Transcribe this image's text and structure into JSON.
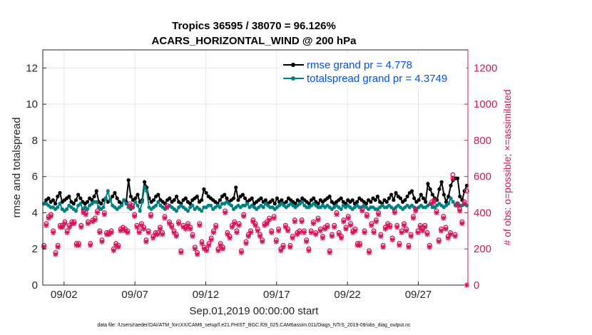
{
  "chart_data": {
    "type": "line",
    "title": "Tropics 36595 / 38070 = 96.126%",
    "subtitle": "ACARS_HORIZONTAL_WIND @ 200 hPa",
    "xlabel": "Sep.01,2019 00:00:00 start",
    "ylabel": "rmse and totalspread",
    "ylabel_right": "# of obs: o=possible; ×=assimilated",
    "xlim": [
      0.5,
      30.5
    ],
    "ylim": [
      0,
      13
    ],
    "ylim_right": [
      0,
      1300
    ],
    "x_ticks": [
      {
        "x": 2,
        "label": "09/02"
      },
      {
        "x": 7,
        "label": "09/07"
      },
      {
        "x": 12,
        "label": "09/12"
      },
      {
        "x": 17,
        "label": "09/17"
      },
      {
        "x": 22,
        "label": "09/22"
      },
      {
        "x": 27,
        "label": "09/27"
      }
    ],
    "y_ticks": [
      0,
      2,
      4,
      6,
      8,
      10,
      12
    ],
    "y_ticks_right": [
      0,
      200,
      400,
      600,
      800,
      1000,
      1200
    ],
    "grid": true,
    "legend_position": "top-right",
    "colors": {
      "rmse": "#000000",
      "spread": "#008080",
      "obs": "#d4145a",
      "axis": "#262626",
      "legend_text": "#0050e6"
    },
    "series": [
      {
        "name": "rmse grand pr = 4.778",
        "color": "#000000",
        "values": [
          4.5,
          4.7,
          4.8,
          4.6,
          4.7,
          4.5,
          4.9,
          5.1,
          4.6,
          4.7,
          4.8,
          4.9,
          4.6,
          4.5,
          4.7,
          5.0,
          4.8,
          4.6,
          4.5,
          4.6,
          4.8,
          4.7,
          4.9,
          5.2,
          4.6,
          4.5,
          4.7,
          4.8,
          4.6,
          4.7,
          4.9,
          5.1,
          4.8,
          4.6,
          4.5,
          4.7,
          4.6,
          5.8,
          4.9,
          4.7,
          4.8,
          5.0,
          4.6,
          4.7,
          5.7,
          5.4,
          4.8,
          4.6,
          4.7,
          4.9,
          5.0,
          4.7,
          4.6,
          4.5,
          4.7,
          4.8,
          4.6,
          4.7,
          4.9,
          4.6,
          4.5,
          4.7,
          4.8,
          4.6,
          4.5,
          4.7,
          4.8,
          4.9,
          4.6,
          4.7,
          5.3,
          5.1,
          4.9,
          4.8,
          4.7,
          4.6,
          4.5,
          4.7,
          4.9,
          5.0,
          4.8,
          4.6,
          4.7,
          4.8,
          5.4,
          4.7,
          4.9,
          5.0,
          4.8,
          4.6,
          4.7,
          4.8,
          4.5,
          4.6,
          4.7,
          4.8,
          4.6,
          4.7,
          4.5,
          4.6,
          4.7,
          4.5,
          4.8,
          4.6,
          4.7,
          4.5,
          4.6,
          4.8,
          4.7,
          4.6,
          4.5,
          4.7,
          4.6,
          4.8,
          4.7,
          4.6,
          4.5,
          4.7,
          4.8,
          4.6,
          4.5,
          4.7,
          4.6,
          4.7,
          4.8,
          4.9,
          4.6,
          4.5,
          4.6,
          4.7,
          4.8,
          4.6,
          4.5,
          4.7,
          4.6,
          4.7,
          4.5,
          4.6,
          4.8,
          4.7,
          4.6,
          4.5,
          4.7,
          4.6,
          4.8,
          4.7,
          4.9,
          4.6,
          4.5,
          4.7,
          4.6,
          4.8,
          5.0,
          4.7,
          5.1,
          4.9,
          4.8,
          4.6,
          4.7,
          4.9,
          5.1,
          5.2,
          4.8,
          4.6,
          4.7,
          5.0,
          4.8,
          4.6,
          5.6,
          5.3,
          5.0,
          4.8,
          4.7,
          5.3,
          5.7,
          5.0,
          4.6,
          4.9,
          5.5,
          5.8,
          5.9,
          5.9,
          4.9,
          4.7,
          5.2,
          5.5
        ]
      },
      {
        "name": "totalspread grand pr = 4.3749",
        "color": "#008080",
        "values": [
          4.5,
          4.5,
          4.4,
          4.3,
          4.3,
          4.2,
          4.3,
          4.5,
          4.2,
          4.1,
          4.2,
          4.4,
          4.3,
          4.2,
          4.1,
          4.4,
          4.5,
          4.2,
          4.3,
          4.2,
          4.4,
          4.5,
          4.6,
          4.6,
          4.3,
          4.2,
          4.3,
          4.8,
          5.2,
          4.7,
          4.4,
          4.3,
          4.2,
          4.3,
          4.4,
          4.7,
          4.5,
          4.3,
          4.2,
          4.3,
          4.6,
          4.4,
          4.1,
          4.6,
          5.4,
          5.2,
          4.3,
          4.2,
          4.3,
          4.4,
          4.6,
          4.4,
          4.3,
          4.2,
          4.3,
          4.4,
          4.3,
          4.2,
          4.1,
          4.3,
          4.4,
          4.3,
          4.2,
          4.1,
          4.3,
          4.4,
          4.2,
          4.3,
          4.2,
          4.1,
          4.3,
          4.3,
          4.4,
          4.4,
          4.2,
          4.3,
          4.4,
          4.3,
          4.5,
          4.5,
          4.6,
          4.5,
          4.4,
          4.2,
          4.3,
          4.4,
          4.3,
          4.4,
          4.4,
          4.5,
          4.3,
          4.4,
          4.3,
          4.2,
          4.3,
          4.4,
          4.3,
          4.5,
          4.4,
          4.3,
          4.3,
          4.2,
          4.3,
          4.4,
          4.5,
          4.4,
          4.3,
          4.4,
          4.5,
          4.4,
          4.3,
          4.4,
          4.5,
          4.6,
          4.4,
          4.3,
          4.3,
          4.4,
          4.5,
          4.4,
          4.3,
          4.3,
          4.4,
          4.3,
          4.4,
          4.3,
          4.2,
          4.3,
          4.4,
          4.3,
          4.2,
          4.4,
          4.3,
          4.4,
          4.3,
          4.2,
          4.3,
          4.4,
          4.3,
          4.3,
          4.4,
          4.3,
          4.2,
          4.3,
          4.3,
          4.2,
          4.2,
          4.3,
          4.4,
          4.3,
          4.3,
          4.4,
          4.3,
          4.2,
          4.3,
          4.4,
          4.3,
          4.2,
          4.3,
          4.4,
          4.3,
          4.4,
          4.3,
          4.2,
          4.3,
          4.4,
          4.3,
          4.3,
          4.4,
          4.5,
          4.3,
          4.3,
          4.4,
          4.5,
          4.4,
          4.3,
          4.4,
          4.5,
          4.8,
          4.6,
          4.4,
          4.5,
          4.4,
          4.4,
          4.5,
          4.4
        ]
      },
      {
        "name": "obs possible",
        "color": "#d4145a",
        "marker": "o",
        "values": [
          220,
          340,
          380,
          390,
          300,
          180,
          220,
          330,
          330,
          350,
          300,
          330,
          350,
          350,
          230,
          230,
          330,
          410,
          400,
          350,
          230,
          360,
          370,
          410,
          300,
          250,
          400,
          290,
          290,
          300,
          200,
          230,
          220,
          310,
          320,
          310,
          300,
          450,
          440,
          390,
          330,
          300,
          340,
          320,
          250,
          300,
          390,
          270,
          290,
          290,
          320,
          290,
          380,
          440,
          350,
          330,
          300,
          280,
          350,
          190,
          330,
          320,
          340,
          320,
          280,
          210,
          180,
          340,
          240,
          210,
          200,
          230,
          260,
          300,
          330,
          200,
          230,
          210,
          410,
          290,
          270,
          330,
          350,
          300,
          340,
          190,
          390,
          240,
          280,
          300,
          360,
          340,
          310,
          280,
          250,
          340,
          350,
          370,
          300,
          380,
          250,
          310,
          200,
          220,
          330,
          310,
          220,
          270,
          360,
          290,
          300,
          360,
          300,
          250,
          200,
          300,
          350,
          290,
          370,
          310,
          270,
          320,
          330,
          190,
          280,
          330,
          400,
          290,
          270,
          360,
          320,
          380,
          340,
          300,
          310,
          230,
          230,
          420,
          300,
          390,
          190,
          340,
          300,
          360,
          400,
          280,
          220,
          320,
          340,
          330,
          260,
          410,
          330,
          230,
          300,
          340,
          310,
          220,
          280,
          380,
          420,
          300,
          330,
          310,
          330,
          290,
          220,
          460,
          470,
          410,
          250,
          310,
          380,
          320,
          270,
          290,
          610,
          280,
          450,
          420,
          350,
          460,
          520
        ]
      },
      {
        "name": "obs assimilated",
        "color": "#d4145a",
        "marker": "x",
        "values": [
          210,
          330,
          370,
          380,
          290,
          170,
          210,
          320,
          320,
          340,
          290,
          320,
          340,
          340,
          220,
          220,
          320,
          400,
          390,
          340,
          220,
          350,
          360,
          400,
          290,
          240,
          390,
          280,
          280,
          290,
          190,
          220,
          210,
          300,
          310,
          300,
          290,
          440,
          430,
          380,
          320,
          290,
          330,
          310,
          240,
          290,
          380,
          260,
          280,
          280,
          310,
          280,
          370,
          430,
          340,
          320,
          290,
          270,
          340,
          180,
          320,
          310,
          330,
          310,
          270,
          200,
          170,
          330,
          230,
          200,
          190,
          220,
          250,
          290,
          320,
          190,
          220,
          200,
          400,
          280,
          260,
          320,
          340,
          290,
          330,
          180,
          380,
          230,
          270,
          290,
          350,
          330,
          300,
          270,
          240,
          330,
          340,
          360,
          290,
          370,
          240,
          300,
          190,
          210,
          320,
          300,
          210,
          260,
          350,
          280,
          290,
          350,
          290,
          240,
          190,
          290,
          340,
          280,
          360,
          300,
          260,
          310,
          320,
          180,
          270,
          320,
          390,
          280,
          260,
          350,
          310,
          370,
          330,
          290,
          300,
          220,
          220,
          410,
          290,
          380,
          180,
          330,
          290,
          350,
          390,
          270,
          210,
          310,
          330,
          320,
          250,
          400,
          320,
          220,
          290,
          330,
          300,
          210,
          270,
          370,
          410,
          290,
          320,
          300,
          320,
          280,
          210,
          450,
          460,
          400,
          240,
          300,
          370,
          310,
          260,
          280,
          590,
          270,
          440,
          410,
          340,
          450,
          0
        ]
      }
    ],
    "legend": [
      "rmse grand pr = 4.778",
      "totalspread grand pr = 4.3749"
    ]
  },
  "footer": "data file: /Users/raeder/DAI/ATM_forcXX/CAM6_setup/f.e21.FHIST_BGC.f09_025.CAM6assim.011/Diags_NTrS_2019-09/obs_diag_output.nc"
}
